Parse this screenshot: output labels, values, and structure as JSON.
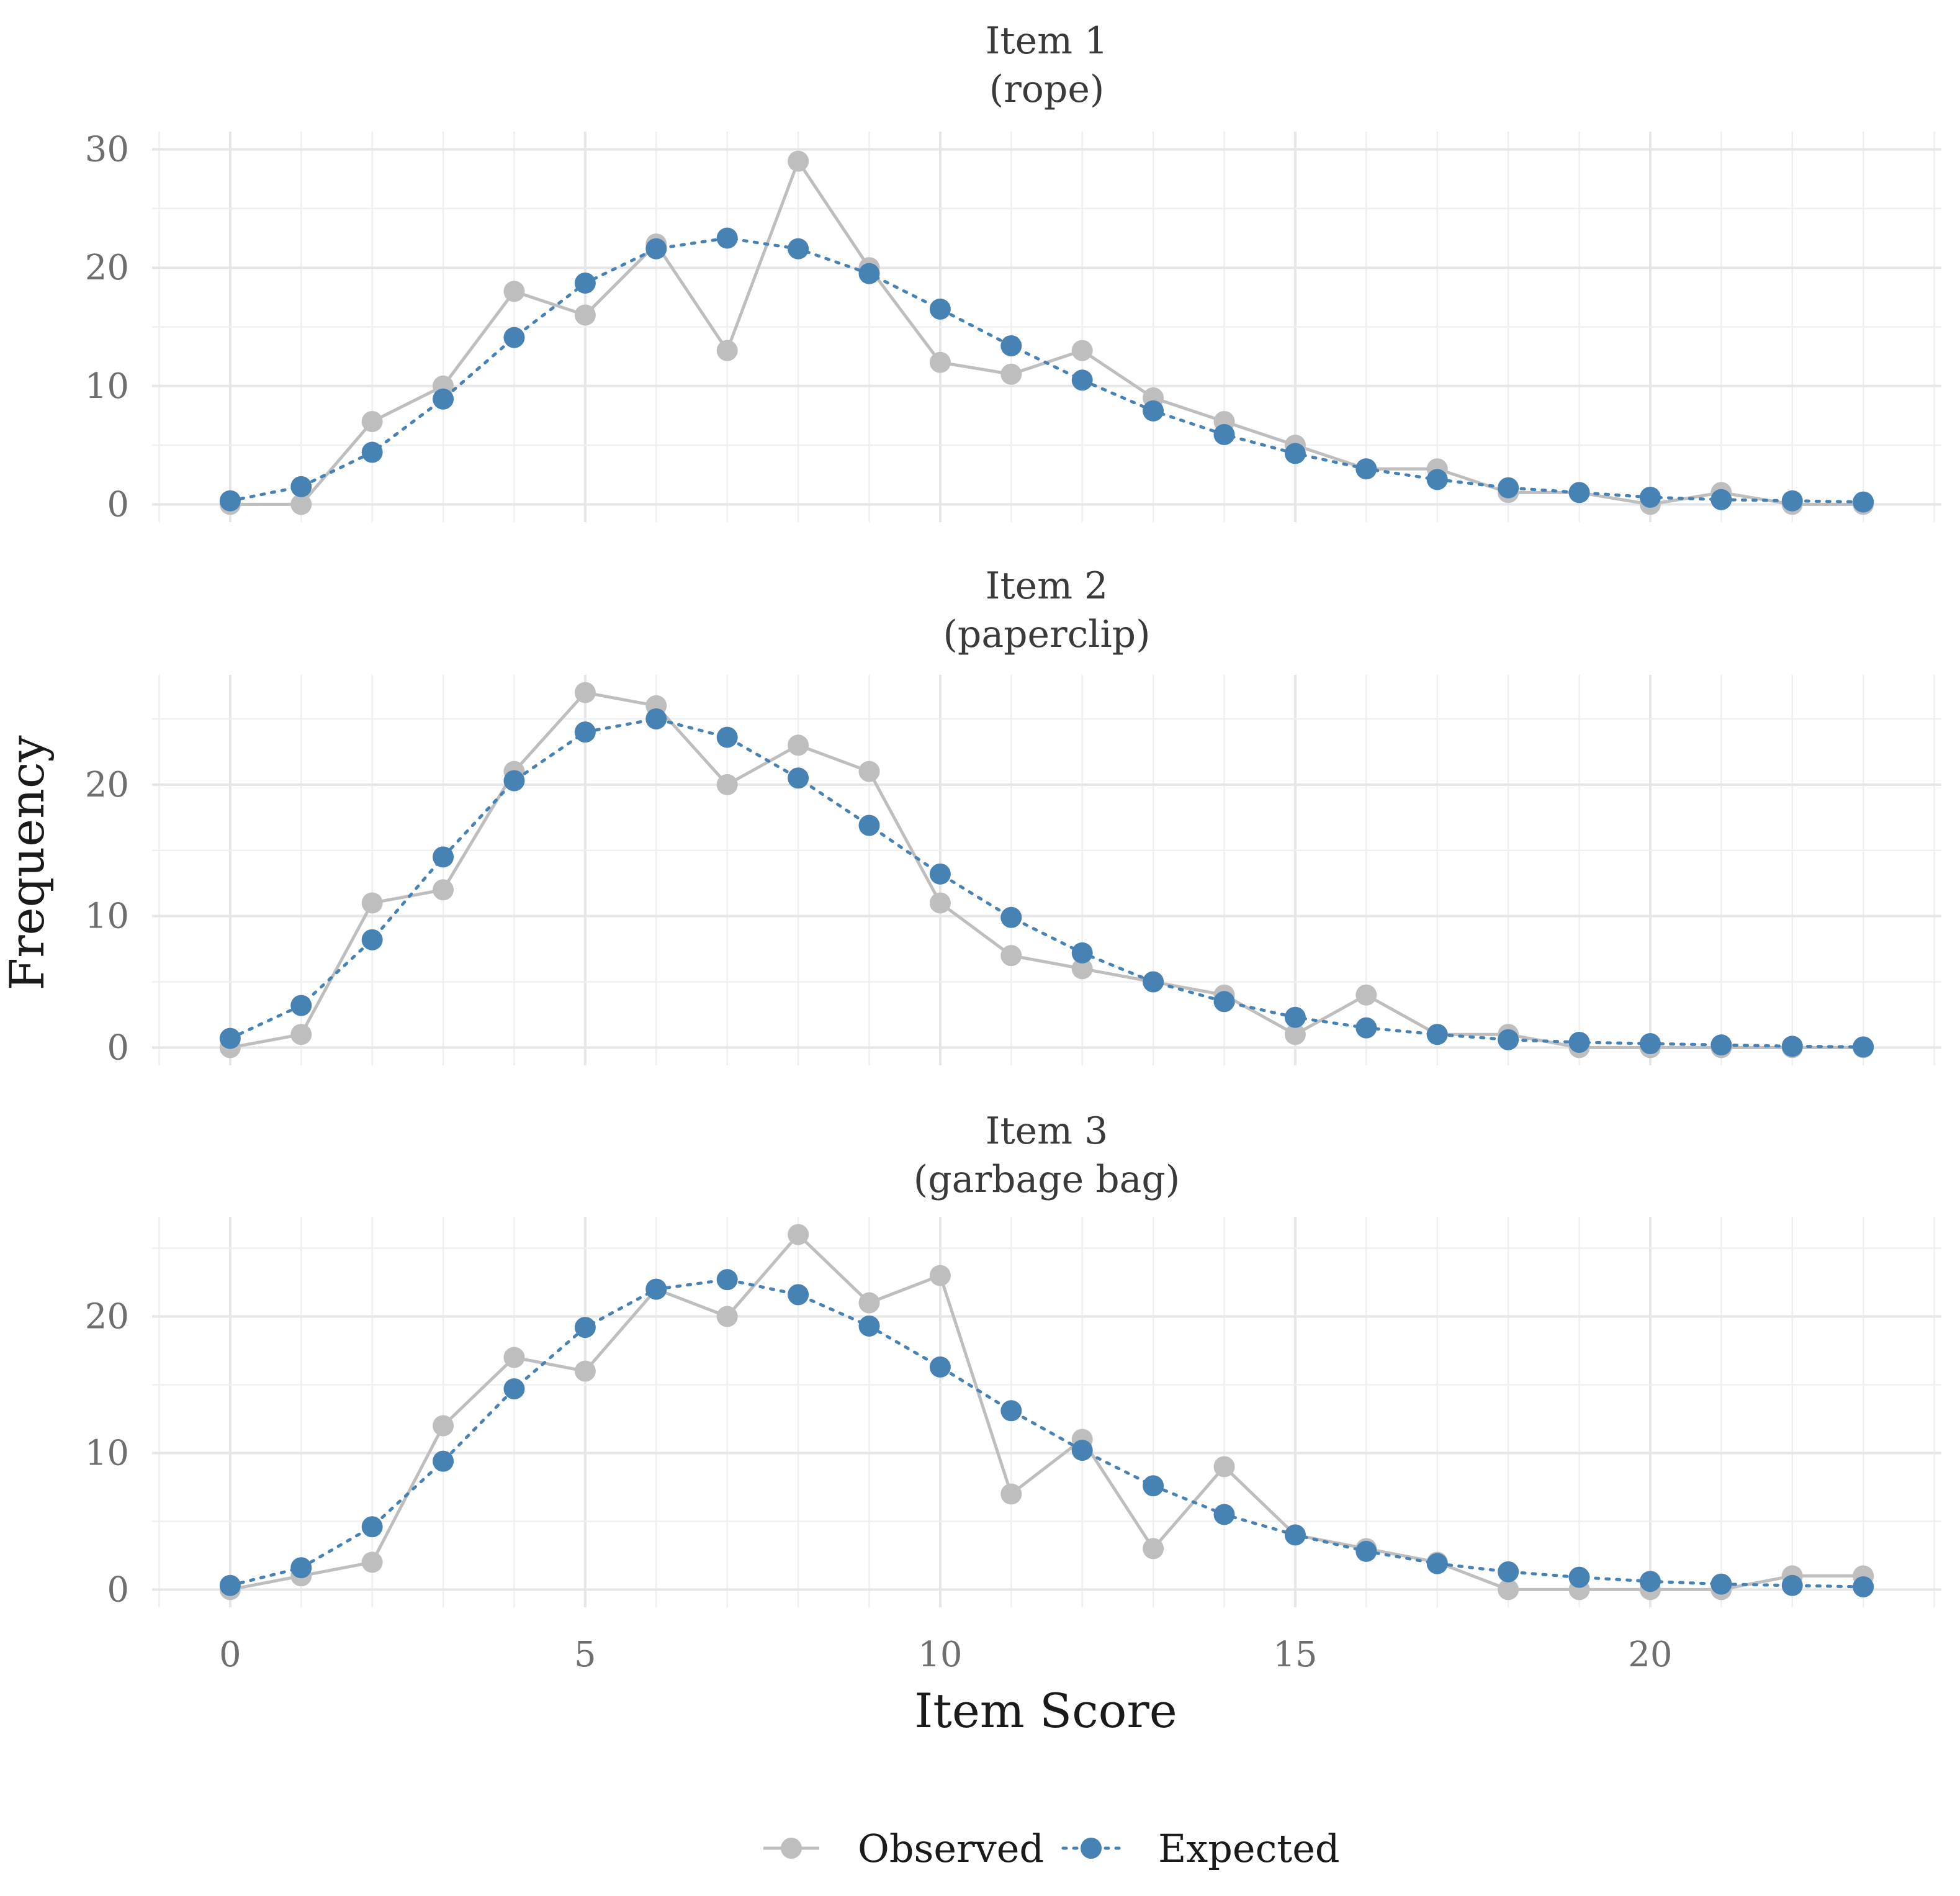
{
  "chart_data": {
    "type": "line",
    "xlabel": "Item Score",
    "ylabel": "Frequency",
    "x": [
      0,
      1,
      2,
      3,
      4,
      5,
      6,
      7,
      8,
      9,
      10,
      11,
      12,
      13,
      14,
      15,
      16,
      17,
      18,
      19,
      20,
      21,
      22,
      23
    ],
    "xlim": [
      -1.1,
      24.1
    ],
    "x_ticks": [
      0,
      5,
      10,
      15,
      20
    ],
    "grid": true,
    "legend": {
      "position": "bottom",
      "entries": [
        "Observed",
        "Expected"
      ]
    },
    "colors": {
      "observed": "#bebebe",
      "expected": "#4682b4"
    },
    "panels": [
      {
        "title": "Item 1",
        "subtitle": "(rope)",
        "ylim": [
          -1.5,
          31.5
        ],
        "y_ticks": [
          0,
          10,
          20,
          30
        ],
        "series": [
          {
            "name": "Observed",
            "values": [
              0,
              0,
              7,
              10,
              18,
              16,
              22,
              13,
              29,
              20,
              12,
              11,
              13,
              9,
              7,
              5,
              3,
              3,
              1,
              1,
              0,
              1,
              0,
              0
            ]
          },
          {
            "name": "Expected",
            "values": [
              0.3,
              1.5,
              4.4,
              8.9,
              14.1,
              18.7,
              21.6,
              22.5,
              21.6,
              19.5,
              16.5,
              13.4,
              10.5,
              7.9,
              5.9,
              4.3,
              3.0,
              2.1,
              1.4,
              1.0,
              0.6,
              0.4,
              0.3,
              0.2
            ]
          }
        ]
      },
      {
        "title": "Item 2",
        "subtitle": "(paperclip)",
        "ylim": [
          -1.35,
          28.35
        ],
        "y_ticks": [
          0,
          10,
          20
        ],
        "series": [
          {
            "name": "Observed",
            "values": [
              0,
              1,
              11,
              12,
              21,
              27,
              26,
              20,
              23,
              21,
              11,
              7,
              6,
              5,
              4,
              1,
              4,
              1,
              1,
              0,
              0,
              0,
              0,
              0
            ]
          },
          {
            "name": "Expected",
            "values": [
              0.7,
              3.2,
              8.2,
              14.5,
              20.3,
              24.0,
              25.0,
              23.6,
              20.5,
              16.9,
              13.2,
              9.9,
              7.2,
              5.0,
              3.5,
              2.3,
              1.5,
              1.0,
              0.6,
              0.4,
              0.3,
              0.2,
              0.1,
              0.05
            ]
          }
        ]
      },
      {
        "title": "Item 3",
        "subtitle": "(garbage bag)",
        "ylim": [
          -1.3,
          27.3
        ],
        "y_ticks": [
          0,
          10,
          20
        ],
        "series": [
          {
            "name": "Observed",
            "values": [
              0,
              1,
              2,
              12,
              17,
              16,
              22,
              20,
              26,
              21,
              23,
              7,
              11,
              3,
              9,
              4,
              3,
              2,
              0,
              0,
              0,
              0,
              1,
              1
            ]
          },
          {
            "name": "Expected",
            "values": [
              0.3,
              1.6,
              4.6,
              9.4,
              14.7,
              19.2,
              22.0,
              22.7,
              21.6,
              19.3,
              16.3,
              13.1,
              10.2,
              7.6,
              5.5,
              4.0,
              2.8,
              1.9,
              1.3,
              0.9,
              0.6,
              0.4,
              0.3,
              0.2
            ]
          }
        ]
      }
    ]
  }
}
